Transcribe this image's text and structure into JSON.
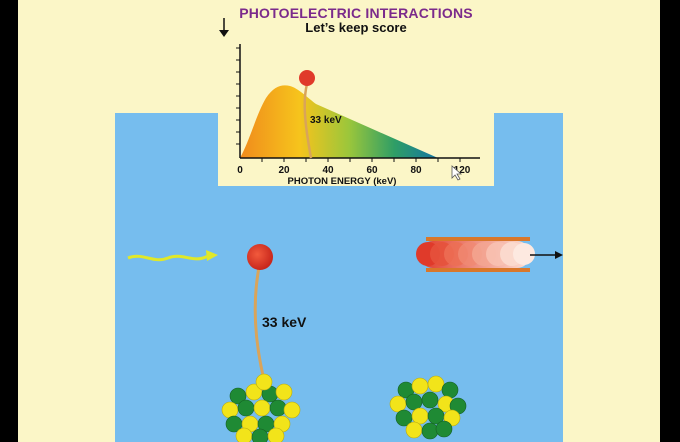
{
  "slide": {
    "title": "PHOTOELECTRIC INTERACTIONS",
    "subtitle": "Let’s keep score"
  },
  "chart_data": {
    "type": "area",
    "xlabel": "PHOTON ENERGY (keV)",
    "ylabel": "",
    "x_ticks": [
      "0",
      "20",
      "40",
      "60",
      "80",
      "120"
    ],
    "xlim": [
      0,
      120
    ],
    "spectrum_gradient": [
      "#f08b1c",
      "#f6c41c",
      "#9bc63b",
      "#2f9e66",
      "#1475a3"
    ],
    "marker_label": "33 keV",
    "marker_energy_keV": 33
  },
  "scene": {
    "electron_energy_label": "33 keV",
    "photon_color": "#e0e829",
    "electron_color": "#e03a2a",
    "nucleus_colors": [
      "#f2e41a",
      "#1f8a34"
    ]
  }
}
